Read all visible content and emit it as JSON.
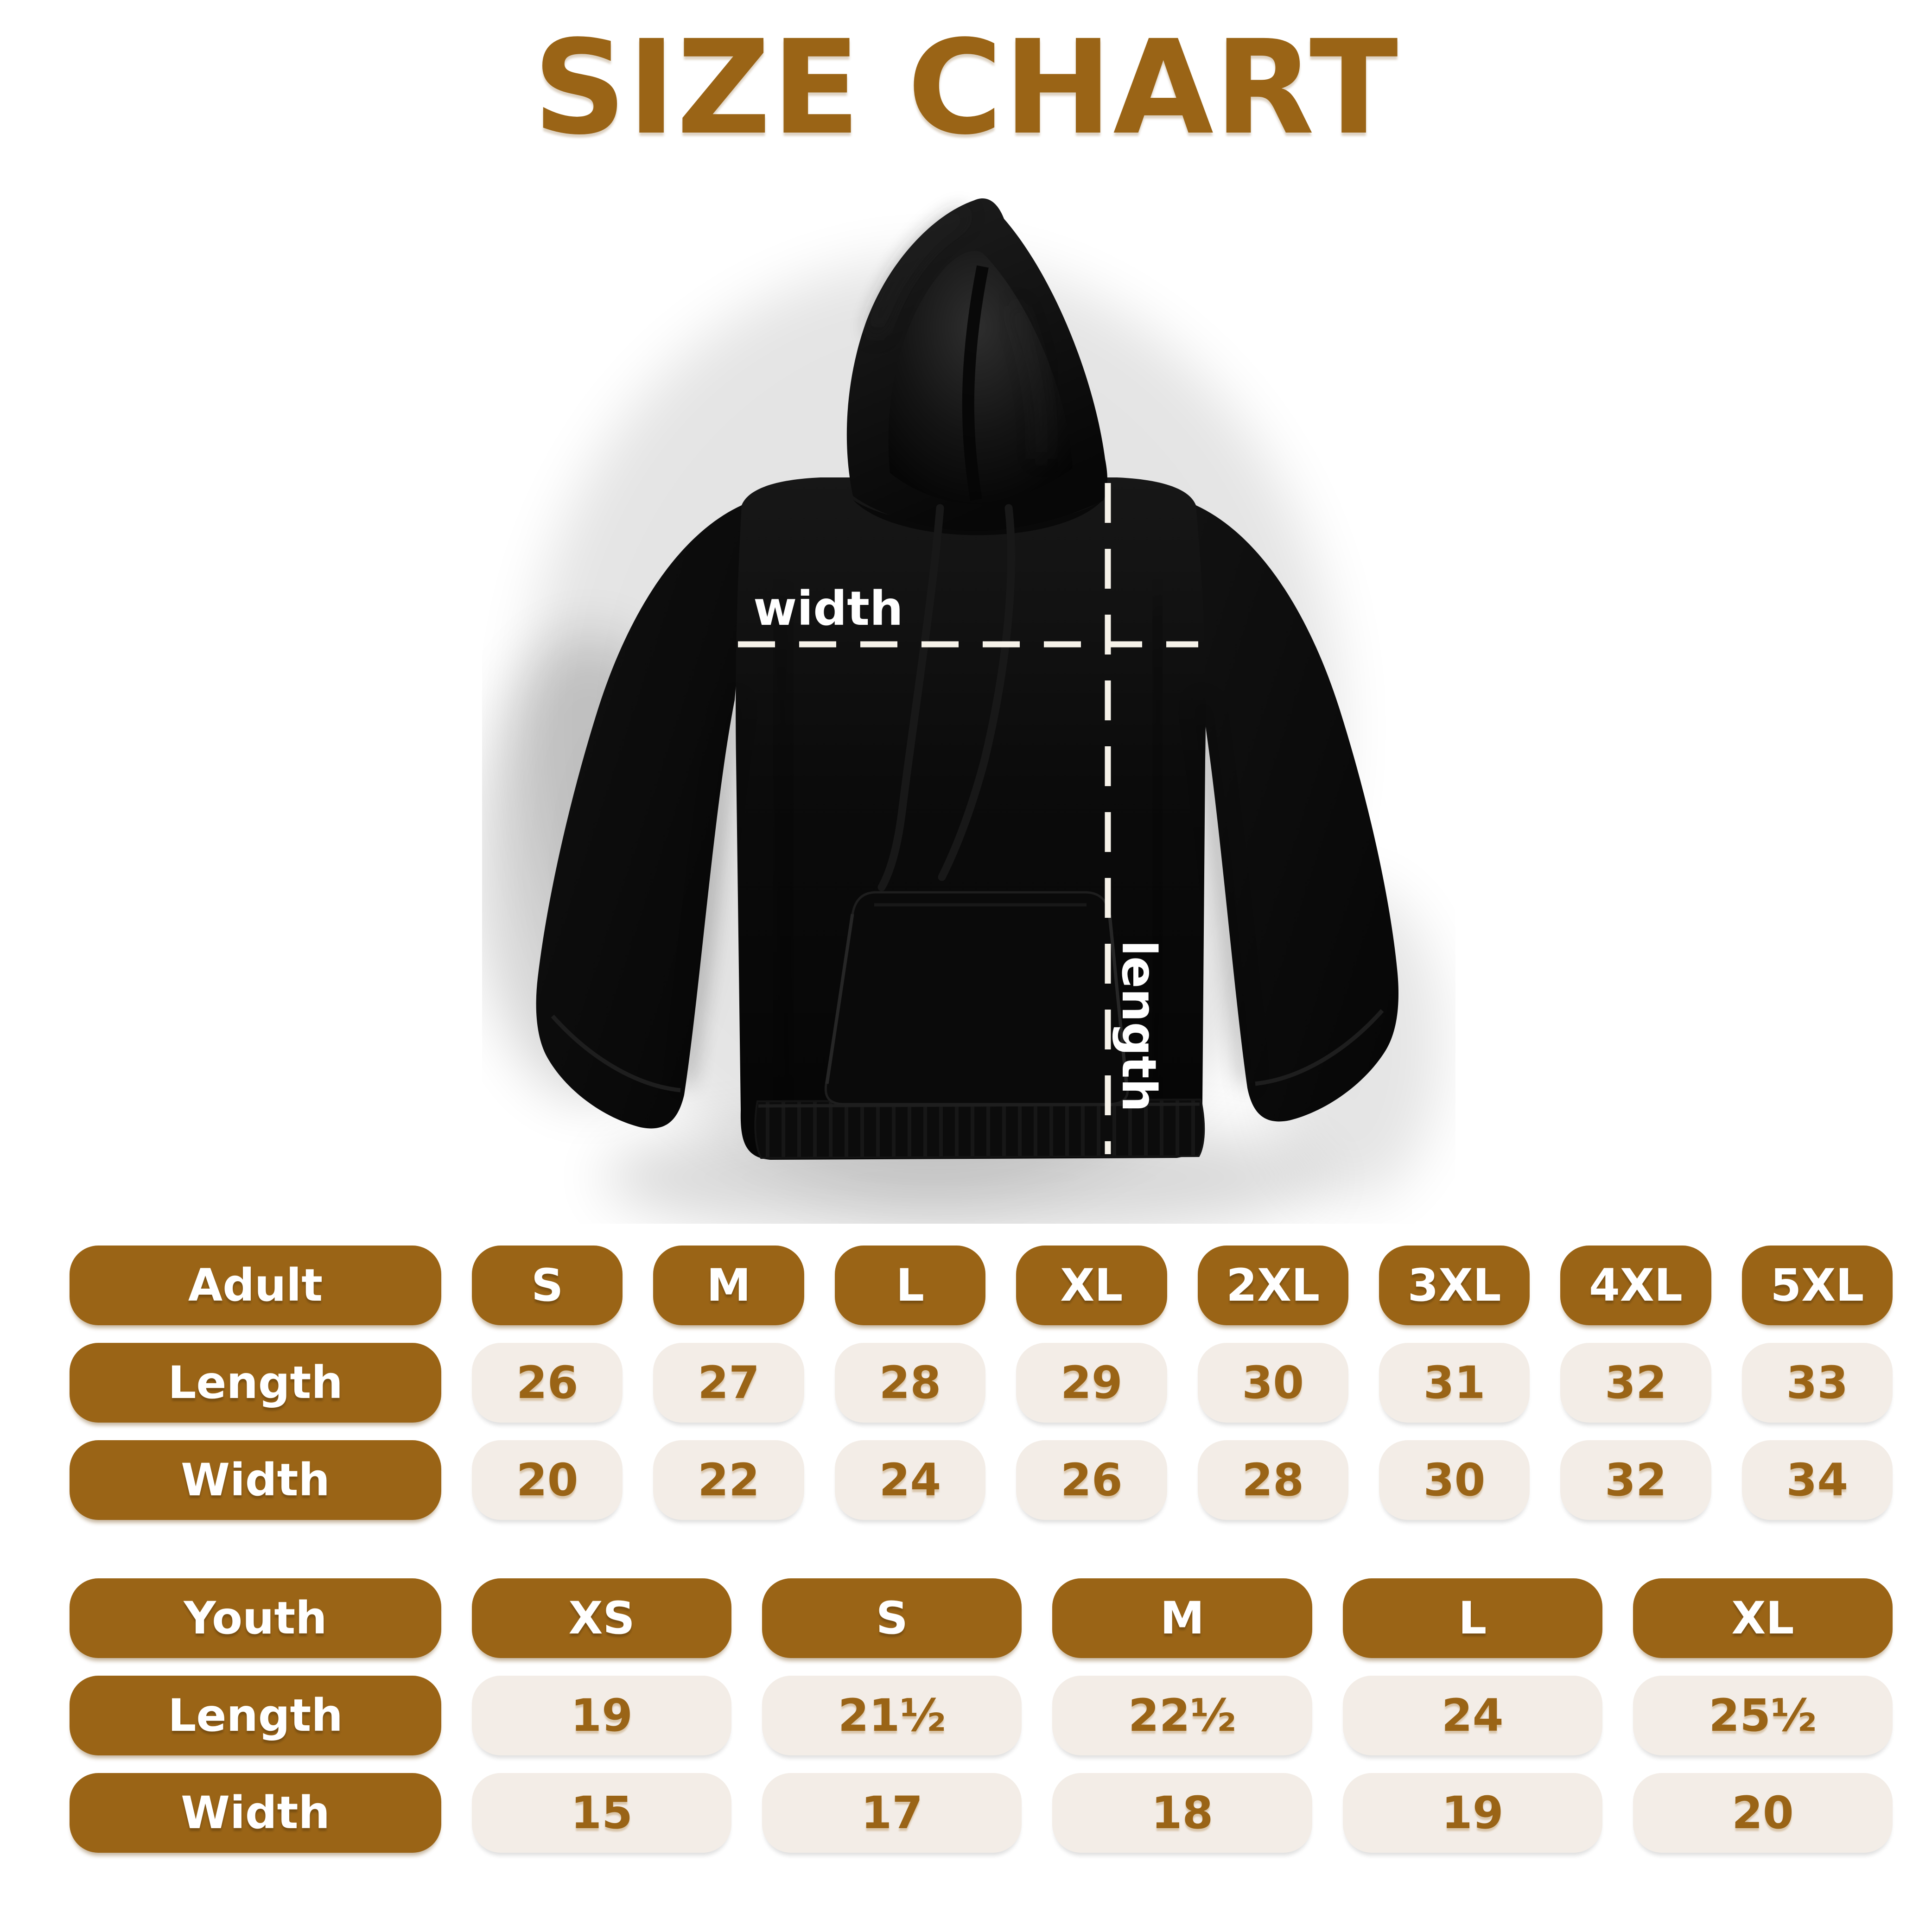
{
  "title": "SIZE CHART",
  "colors": {
    "brown": "#9A6416",
    "beige": "#F3EDE7",
    "hoodie_black": "#0B0B0B",
    "dash_white": "#F6F2E9",
    "background": "#FFFFFF"
  },
  "hoodie": {
    "width_label": "width",
    "length_label": "length"
  },
  "adult_table": {
    "header": [
      "Adult",
      "S",
      "M",
      "L",
      "XL",
      "2XL",
      "3XL",
      "4XL",
      "5XL"
    ],
    "rows": [
      {
        "label": "Length",
        "values": [
          "26",
          "27",
          "28",
          "29",
          "30",
          "31",
          "32",
          "33"
        ]
      },
      {
        "label": "Width",
        "values": [
          "20",
          "22",
          "24",
          "26",
          "28",
          "30",
          "32",
          "34"
        ]
      }
    ]
  },
  "youth_table": {
    "header": [
      "Youth",
      "XS",
      "S",
      "M",
      "L",
      "XL"
    ],
    "rows": [
      {
        "label": "Length",
        "values": [
          "19",
          "21½",
          "22½",
          "24",
          "25½"
        ]
      },
      {
        "label": "Width",
        "values": [
          "15",
          "17",
          "18",
          "19",
          "20"
        ]
      }
    ]
  },
  "chart_data": [
    {
      "type": "table",
      "title": "Adult hoodie sizes (inches)",
      "columns": [
        "Adult",
        "S",
        "M",
        "L",
        "XL",
        "2XL",
        "3XL",
        "4XL",
        "5XL"
      ],
      "rows": [
        [
          "Length",
          26,
          27,
          28,
          29,
          30,
          31,
          32,
          33
        ],
        [
          "Width",
          20,
          22,
          24,
          26,
          28,
          30,
          32,
          34
        ]
      ]
    },
    {
      "type": "table",
      "title": "Youth hoodie sizes (inches)",
      "columns": [
        "Youth",
        "XS",
        "S",
        "M",
        "L",
        "XL"
      ],
      "rows": [
        [
          "Length",
          19,
          21.5,
          22.5,
          24,
          25.5
        ],
        [
          "Width",
          15,
          17,
          18,
          19,
          20
        ]
      ]
    }
  ]
}
